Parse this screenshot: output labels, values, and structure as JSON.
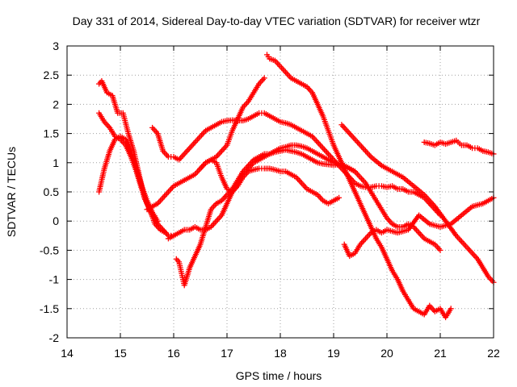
{
  "chart_data": {
    "type": "scatter",
    "title": "Day 331 of 2014, Sidereal Day-to-day VTEC variation (SDTVAR) for receiver wtzr",
    "xlabel": "GPS time / hours",
    "ylabel": "SDTVAR / TECUs",
    "xlim": [
      14,
      22
    ],
    "ylim": [
      -2,
      3
    ],
    "xticks": [
      14,
      15,
      16,
      17,
      18,
      19,
      20,
      21,
      22
    ],
    "yticks": [
      -2,
      -1.5,
      -1,
      -0.5,
      0,
      0.5,
      1,
      1.5,
      2,
      2.5,
      3
    ],
    "ytick_labels": [
      "-2",
      "-1.5",
      "-1",
      "-0.5",
      "0",
      "0.5",
      "1",
      "1.5",
      "2",
      "2.5",
      "3"
    ],
    "grid": true,
    "marker": "+",
    "color": "#ff0000",
    "series": [
      {
        "name": "trace-1",
        "x": [
          14.6,
          14.65,
          14.75,
          14.85,
          14.95,
          15.05,
          15.15,
          15.25,
          15.35,
          15.45,
          15.55,
          15.65,
          15.75,
          15.85
        ],
        "y": [
          2.35,
          2.4,
          2.2,
          2.15,
          1.85,
          1.85,
          1.5,
          1.2,
          0.8,
          0.4,
          0.2,
          -0.05,
          -0.15,
          -0.2
        ]
      },
      {
        "name": "trace-2",
        "x": [
          14.6,
          14.7,
          14.8,
          14.9,
          15.0,
          15.1,
          15.2,
          15.3,
          15.4,
          15.5,
          15.6,
          15.7,
          15.8,
          15.9,
          16.0
        ],
        "y": [
          1.85,
          1.7,
          1.6,
          1.45,
          1.4,
          1.3,
          1.1,
          0.85,
          0.55,
          0.3,
          0.1,
          -0.05,
          -0.15,
          -0.25,
          -0.25
        ]
      },
      {
        "name": "trace-3",
        "x": [
          14.6,
          14.7,
          14.8,
          14.9,
          15.0,
          15.1,
          15.2,
          15.3,
          15.4,
          15.5,
          15.6,
          15.7
        ],
        "y": [
          0.5,
          0.9,
          1.2,
          1.4,
          1.45,
          1.4,
          1.2,
          0.9,
          0.6,
          0.35,
          0.15,
          0.0
        ]
      },
      {
        "name": "trace-4",
        "x": [
          15.6,
          15.7,
          15.8,
          15.9,
          16.0,
          16.1,
          16.2,
          16.3,
          16.4,
          16.5,
          16.6,
          16.7,
          16.8,
          16.9,
          17.0,
          17.1,
          17.2,
          17.3,
          17.4,
          17.5,
          17.6,
          17.7,
          17.8,
          17.9,
          18.0,
          18.1,
          18.2,
          18.3,
          18.4,
          18.5,
          18.6,
          18.7,
          18.8,
          18.9,
          19.0,
          19.1,
          19.2,
          19.3,
          19.4,
          19.5,
          19.6,
          19.7,
          19.8,
          19.9,
          20.0,
          20.1,
          20.2,
          20.3,
          20.4,
          20.5,
          20.6,
          20.7,
          20.8,
          20.9,
          21.0
        ],
        "y": [
          1.6,
          1.5,
          1.2,
          1.1,
          1.1,
          1.05,
          1.15,
          1.25,
          1.35,
          1.45,
          1.55,
          1.6,
          1.65,
          1.7,
          1.72,
          1.73,
          1.72,
          1.72,
          1.75,
          1.8,
          1.85,
          1.85,
          1.8,
          1.75,
          1.7,
          1.68,
          1.65,
          1.6,
          1.55,
          1.5,
          1.45,
          1.35,
          1.25,
          1.15,
          1.05,
          0.95,
          0.85,
          0.75,
          0.65,
          0.6,
          0.58,
          0.58,
          0.6,
          0.6,
          0.58,
          0.6,
          0.55,
          0.55,
          0.5,
          0.5,
          0.45,
          0.4,
          0.3,
          0.2,
          0.1
        ]
      },
      {
        "name": "trace-5",
        "x": [
          15.5,
          15.6,
          15.7,
          15.8,
          15.9,
          16.0,
          16.1,
          16.2,
          16.3,
          16.4,
          16.5,
          16.6,
          16.7,
          16.8,
          16.9,
          17.0,
          17.1,
          17.2,
          17.3,
          17.4,
          17.5,
          17.6,
          17.7
        ],
        "y": [
          0.2,
          0.25,
          0.3,
          0.4,
          0.5,
          0.6,
          0.65,
          0.7,
          0.75,
          0.8,
          0.9,
          1.0,
          1.05,
          1.1,
          1.2,
          1.3,
          1.55,
          1.75,
          1.95,
          2.05,
          2.2,
          2.35,
          2.45
        ]
      },
      {
        "name": "trace-6",
        "x": [
          16.05,
          16.1,
          16.15,
          16.2,
          16.25,
          16.3,
          16.4,
          16.5,
          16.6,
          16.7,
          16.8,
          16.9,
          17.0,
          17.1,
          17.2,
          17.3,
          17.4,
          17.5,
          17.6,
          17.7,
          17.8,
          17.9,
          18.0,
          18.1,
          18.2,
          18.3,
          18.4,
          18.5,
          18.6,
          18.7,
          18.8,
          18.9,
          19.0,
          19.1,
          19.2,
          19.3,
          19.4
        ],
        "y": [
          -0.65,
          -0.7,
          -0.9,
          -1.1,
          -0.95,
          -0.8,
          -0.6,
          -0.4,
          -0.1,
          0.2,
          0.3,
          0.35,
          0.45,
          0.55,
          0.7,
          0.85,
          0.95,
          1.05,
          1.1,
          1.15,
          1.15,
          1.18,
          1.2,
          1.22,
          1.2,
          1.18,
          1.15,
          1.1,
          1.05,
          1.0,
          0.98,
          0.97,
          0.96,
          0.97,
          0.95,
          0.9,
          0.85
        ]
      },
      {
        "name": "trace-7",
        "x": [
          15.9,
          16.0,
          16.1,
          16.2,
          16.3,
          16.4,
          16.5,
          16.6,
          16.7,
          16.8,
          16.9,
          17.0,
          17.1,
          17.2,
          17.3,
          17.4,
          17.5,
          17.6,
          17.7,
          17.8,
          17.9,
          18.0,
          18.1,
          18.2,
          18.3,
          18.4,
          18.5,
          18.6,
          18.7,
          18.8,
          18.9,
          19.0,
          19.1,
          19.2,
          19.3,
          19.4,
          19.5,
          19.6,
          19.7,
          19.8,
          19.9,
          20.0,
          20.1,
          20.2,
          20.3,
          20.4,
          20.5,
          20.6,
          20.7,
          20.8,
          20.9,
          21.0
        ],
        "y": [
          -0.3,
          -0.25,
          -0.2,
          -0.15,
          -0.15,
          -0.1,
          -0.15,
          -0.15,
          -0.1,
          0.0,
          0.1,
          0.3,
          0.5,
          0.65,
          0.8,
          0.9,
          1.0,
          1.05,
          1.1,
          1.15,
          1.2,
          1.25,
          1.27,
          1.3,
          1.3,
          1.28,
          1.25,
          1.2,
          1.15,
          1.1,
          1.05,
          1.0,
          0.98,
          0.95,
          0.9,
          0.85,
          0.75,
          0.65,
          0.5,
          0.35,
          0.2,
          0.05,
          -0.05,
          -0.1,
          -0.1,
          -0.05,
          -0.1,
          -0.2,
          -0.3,
          -0.35,
          -0.4,
          -0.5
        ]
      },
      {
        "name": "trace-8",
        "x": [
          16.5,
          16.6,
          16.7,
          16.8,
          16.9,
          17.0,
          17.1,
          17.2,
          17.3,
          17.4,
          17.5,
          17.6,
          17.7,
          17.8,
          17.9,
          18.0,
          18.1,
          18.2,
          18.3,
          18.4,
          18.5,
          18.6,
          18.7,
          18.8,
          18.9,
          19.0,
          19.1
        ],
        "y": [
          0.9,
          1.0,
          1.05,
          1.0,
          0.75,
          0.55,
          0.5,
          0.6,
          0.75,
          0.85,
          0.88,
          0.9,
          0.9,
          0.9,
          0.88,
          0.85,
          0.85,
          0.8,
          0.75,
          0.65,
          0.55,
          0.5,
          0.45,
          0.35,
          0.3,
          0.35,
          0.4
        ]
      },
      {
        "name": "trace-9",
        "x": [
          17.75,
          17.8,
          17.9,
          18.0,
          18.1,
          18.2,
          18.3,
          18.4,
          18.5,
          18.6,
          18.7,
          18.8,
          18.9,
          19.0,
          19.1,
          19.2,
          19.3,
          19.4,
          19.5,
          19.6,
          19.7,
          19.8,
          19.9,
          20.0,
          20.1,
          20.2,
          20.3,
          20.4,
          20.5,
          20.6,
          20.7,
          20.8,
          20.9,
          21.0,
          21.1,
          21.2
        ],
        "y": [
          2.85,
          2.78,
          2.75,
          2.65,
          2.55,
          2.45,
          2.4,
          2.35,
          2.3,
          2.2,
          2.0,
          1.8,
          1.55,
          1.3,
          1.1,
          0.9,
          0.7,
          0.5,
          0.3,
          0.1,
          -0.1,
          -0.3,
          -0.45,
          -0.65,
          -0.85,
          -1.0,
          -1.2,
          -1.35,
          -1.5,
          -1.55,
          -1.6,
          -1.45,
          -1.55,
          -1.5,
          -1.65,
          -1.5
        ]
      },
      {
        "name": "trace-10",
        "x": [
          19.15,
          19.3,
          19.5,
          19.7,
          19.9,
          20.1,
          20.3,
          20.5,
          20.7,
          20.9,
          21.1,
          21.3,
          21.5,
          21.7,
          21.9,
          22.0
        ],
        "y": [
          1.65,
          1.5,
          1.3,
          1.1,
          0.95,
          0.85,
          0.75,
          0.6,
          0.45,
          0.25,
          0.0,
          -0.25,
          -0.45,
          -0.65,
          -0.95,
          -1.05
        ]
      },
      {
        "name": "trace-11",
        "x": [
          19.2,
          19.3,
          19.4,
          19.5,
          19.6,
          19.7,
          19.8,
          19.9,
          20.0,
          20.2,
          20.4,
          20.6,
          20.8,
          21.0,
          21.2,
          21.4,
          21.6,
          21.8,
          22.0
        ],
        "y": [
          -0.4,
          -0.6,
          -0.55,
          -0.4,
          -0.3,
          -0.2,
          -0.15,
          -0.2,
          -0.15,
          -0.2,
          -0.15,
          0.1,
          -0.05,
          -0.1,
          -0.05,
          0.1,
          0.25,
          0.3,
          0.4
        ]
      },
      {
        "name": "trace-12",
        "x": [
          20.7,
          20.8,
          20.9,
          21.0,
          21.1,
          21.2,
          21.3,
          21.4,
          21.5,
          21.6,
          21.7,
          21.8,
          21.9,
          22.0
        ],
        "y": [
          1.35,
          1.33,
          1.3,
          1.35,
          1.32,
          1.35,
          1.38,
          1.3,
          1.3,
          1.25,
          1.25,
          1.2,
          1.18,
          1.15
        ]
      }
    ]
  }
}
